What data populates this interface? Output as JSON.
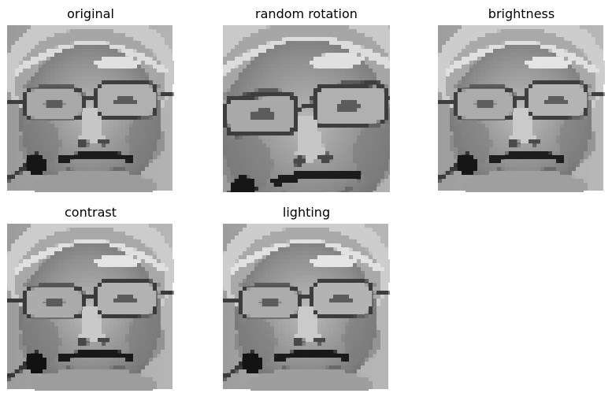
{
  "panels": [
    {
      "title": "original"
    },
    {
      "title": "random rotation"
    },
    {
      "title": "brightness"
    },
    {
      "title": "contrast"
    },
    {
      "title": "lighting"
    }
  ]
}
